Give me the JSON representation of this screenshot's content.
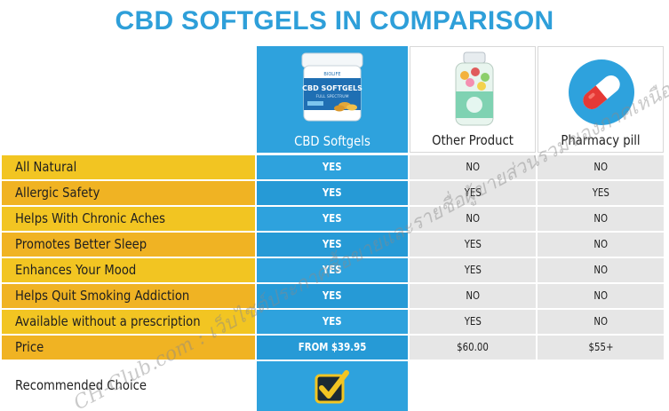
{
  "title": "CBD SOFTGELS IN COMPARISON",
  "columns": [
    {
      "label": "CBD Softgels"
    },
    {
      "label": "Other Product"
    },
    {
      "label": "Pharmacy pill"
    }
  ],
  "jar": {
    "brand": "BIOLIFE",
    "name": "CBD SOFTGELS",
    "sub": "FULL SPECTRUM"
  },
  "rows": [
    {
      "label": "All Natural",
      "cbd": "YES",
      "other": "NO",
      "pharm": "NO"
    },
    {
      "label": "Allergic Safety",
      "cbd": "YES",
      "other": "YES",
      "pharm": "YES"
    },
    {
      "label": "Helps With Chronic Aches",
      "cbd": "YES",
      "other": "NO",
      "pharm": "NO"
    },
    {
      "label": "Promotes Better Sleep",
      "cbd": "YES",
      "other": "YES",
      "pharm": "NO"
    },
    {
      "label": "Enhances Your Mood",
      "cbd": "YES",
      "other": "YES",
      "pharm": "NO"
    },
    {
      "label": "Helps Quit Smoking Addiction",
      "cbd": "YES",
      "other": "NO",
      "pharm": "NO"
    },
    {
      "label": "Available without a prescription",
      "cbd": "YES",
      "other": "YES",
      "pharm": "NO"
    },
    {
      "label": "Price",
      "cbd": "FROM $39.95",
      "other": "$60.00",
      "pharm": "$55+"
    }
  ],
  "recommended": {
    "label": "Recommended Choice"
  },
  "watermark": {
    "text": "CH-Club.com : เว็บไซต์ประกาศซื้อขายและรายชื่อผู้ขายส่วนรวมของภาคเหนือ"
  },
  "colors": {
    "accent_blue": "#2ea2dd",
    "title_blue": "#2e9fd9",
    "label_yellow": "#f2c522",
    "label_orange": "#f0b323",
    "neutral_gray": "#e6e6e6"
  }
}
